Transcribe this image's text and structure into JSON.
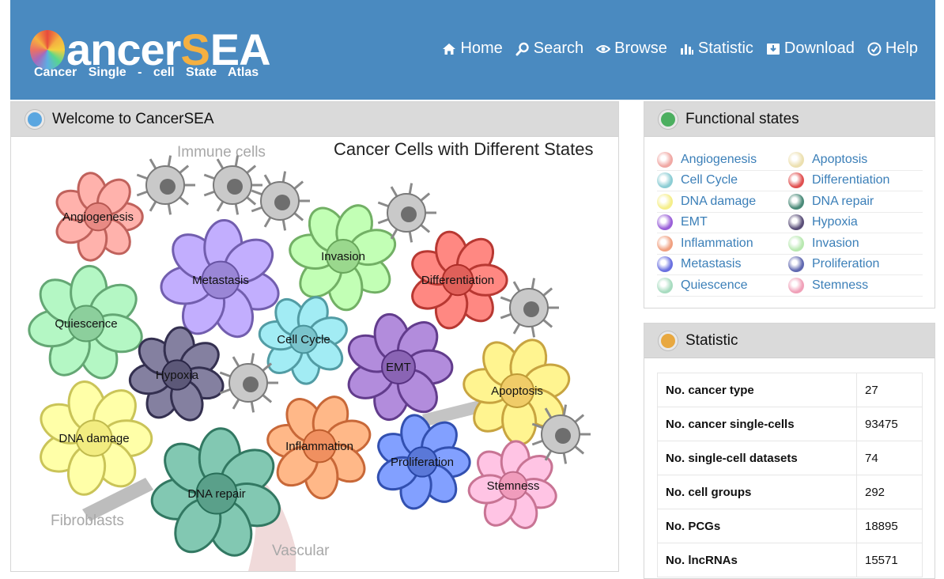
{
  "header": {
    "logo_word": "ancer",
    "logo_s": "S",
    "logo_ea": "EA",
    "logo_sub": "Cancer  Single - cell  State  Atlas",
    "nav": [
      {
        "label": "Home",
        "icon": "home-icon"
      },
      {
        "label": "Search",
        "icon": "search-icon"
      },
      {
        "label": "Browse",
        "icon": "eye-icon"
      },
      {
        "label": "Statistic",
        "icon": "bar-chart-icon"
      },
      {
        "label": "Download",
        "icon": "download-icon"
      },
      {
        "label": "Help",
        "icon": "help-icon"
      }
    ],
    "color": "#4a8ac0"
  },
  "welcome": {
    "title": "Welcome to CancerSEA",
    "bullet_color": "#5aa6e0",
    "figure": {
      "title": "Cancer Cells with Different States",
      "context_labels": {
        "immune": "Immune cells",
        "fibroblasts": "Fibroblasts",
        "vascular": "Vascular"
      },
      "cells": [
        {
          "label": "Angiogenesis",
          "color": "#e88a84"
        },
        {
          "label": "Metastasis",
          "color": "#9a86d6"
        },
        {
          "label": "Invasion",
          "color": "#9ad88d"
        },
        {
          "label": "Differentiation",
          "color": "#e0605a"
        },
        {
          "label": "Quiescence",
          "color": "#8ccf9c"
        },
        {
          "label": "Cell Cycle",
          "color": "#7ac4cc"
        },
        {
          "label": "EMT",
          "color": "#8a64b4"
        },
        {
          "label": "Hypoxia",
          "color": "#5c5878"
        },
        {
          "label": "Apoptosis",
          "color": "#f0cc68"
        },
        {
          "label": "DNA damage",
          "color": "#f2ec80"
        },
        {
          "label": "DNA repair",
          "color": "#5aa08a"
        },
        {
          "label": "Inflammation",
          "color": "#f09060"
        },
        {
          "label": "Proliferation",
          "color": "#5a78d8"
        },
        {
          "label": "Stemness",
          "color": "#f09cbc"
        }
      ]
    }
  },
  "functional_states": {
    "title": "Functional states",
    "bullet_color": "#4caf60",
    "items": [
      {
        "label": "Angiogenesis",
        "color": "#f0a8a4"
      },
      {
        "label": "Apoptosis",
        "color": "#ece0b0"
      },
      {
        "label": "Cell Cycle",
        "color": "#8ccdd4"
      },
      {
        "label": "Differentiation",
        "color": "#e05050"
      },
      {
        "label": "DNA damage",
        "color": "#f5ee8a"
      },
      {
        "label": "DNA repair",
        "color": "#4a8a78"
      },
      {
        "label": "EMT",
        "color": "#9a60d8"
      },
      {
        "label": "Hypoxia",
        "color": "#5a4e78"
      },
      {
        "label": "Inflammation",
        "color": "#f0a080"
      },
      {
        "label": "Invasion",
        "color": "#b8e8b0"
      },
      {
        "label": "Metastasis",
        "color": "#6a70e0"
      },
      {
        "label": "Proliferation",
        "color": "#6068b0"
      },
      {
        "label": "Quiescence",
        "color": "#a8dcc0"
      },
      {
        "label": "Stemness",
        "color": "#f0a0b8"
      }
    ]
  },
  "statistic": {
    "title": "Statistic",
    "bullet_color": "#e8a840",
    "rows": [
      {
        "key": "No. cancer type",
        "value": "27"
      },
      {
        "key": "No. cancer single-cells",
        "value": "93475"
      },
      {
        "key": "No. single-cell datasets",
        "value": "74"
      },
      {
        "key": "No. cell groups",
        "value": "292"
      },
      {
        "key": "No. PCGs",
        "value": "18895"
      },
      {
        "key": "No. lncRNAs",
        "value": "15571"
      }
    ]
  }
}
